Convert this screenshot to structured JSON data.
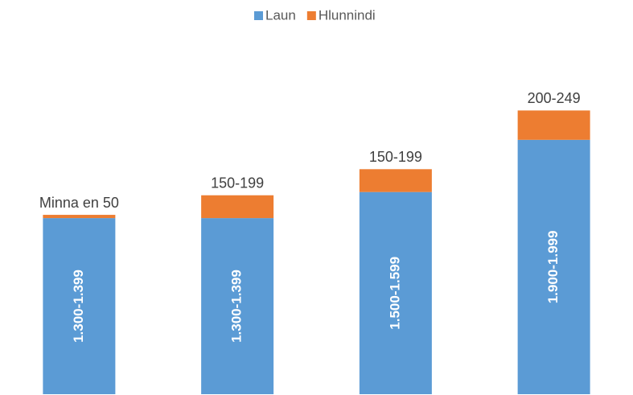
{
  "chart_data": {
    "type": "stacked_bar",
    "categories": [
      null,
      null,
      null,
      null
    ],
    "series": [
      {
        "name": "Laun",
        "color": "#5b9bd5",
        "values": [
          1350,
          1350,
          1550,
          1950
        ],
        "value_labels": [
          "1.300-1.399",
          "1.300-1.399",
          "1.500-1.599",
          "1.900-1.999"
        ]
      },
      {
        "name": "Hlunnindi",
        "color": "#ed7d31",
        "values": [
          25,
          175,
          175,
          225
        ],
        "value_labels": [
          "Minna en 50",
          "150-199",
          "150-199",
          "200-249"
        ]
      }
    ],
    "ylim": [
      0,
      2800
    ],
    "legend": "top"
  }
}
